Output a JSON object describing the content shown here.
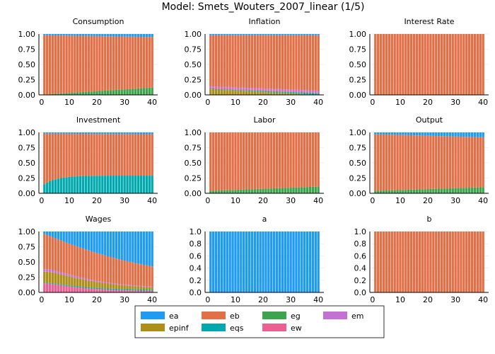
{
  "figure_title": "Model: Smets_Wouters_2007_linear  (1/5)",
  "legend": {
    "location": "bottom-center",
    "entries": [
      {
        "name": "ea",
        "color": "#1f9bf2"
      },
      {
        "name": "eb",
        "color": "#e26f46"
      },
      {
        "name": "eg",
        "color": "#3da44d"
      },
      {
        "name": "em",
        "color": "#c371d2"
      },
      {
        "name": "epinf",
        "color": "#ac8e18"
      },
      {
        "name": "eqs",
        "color": "#00a9ad"
      },
      {
        "name": "ew",
        "color": "#ed5e93"
      }
    ]
  },
  "chart_data": [
    {
      "type": "bar",
      "stacked": true,
      "title": "Consumption",
      "x_range": [
        1,
        40
      ],
      "x_ticks": [
        0,
        10,
        20,
        30,
        40
      ],
      "ylim": [
        0,
        1
      ],
      "y_ticks": [
        "0.00",
        "0.25",
        "0.50",
        "0.75",
        "1.00"
      ],
      "grid": true,
      "series": [
        {
          "name": "eg",
          "start": 0.005,
          "end": 0.12
        },
        {
          "name": "eb",
          "start": 0.975,
          "end": 0.83
        },
        {
          "name": "ea",
          "start": 0.02,
          "end": 0.05
        }
      ]
    },
    {
      "type": "bar",
      "stacked": true,
      "title": "Inflation",
      "x_range": [
        1,
        40
      ],
      "x_ticks": [
        0,
        10,
        20,
        30,
        40
      ],
      "ylim": [
        0,
        1
      ],
      "y_ticks": [
        "0.00",
        "0.25",
        "0.50",
        "0.75",
        "1.00"
      ],
      "grid": true,
      "series": [
        {
          "name": "epinf",
          "start": 0.09,
          "end": 0.0
        },
        {
          "name": "eqs",
          "start": 0.0,
          "end": 0.02
        },
        {
          "name": "eg",
          "start": 0.01,
          "end": 0.01
        },
        {
          "name": "ew",
          "start": 0.02,
          "end": 0.01
        },
        {
          "name": "em",
          "start": 0.02,
          "end": 0.03
        },
        {
          "name": "eb",
          "start": 0.84,
          "end": 0.91
        },
        {
          "name": "ea",
          "start": 0.02,
          "end": 0.02
        }
      ]
    },
    {
      "type": "bar",
      "stacked": true,
      "title": "Interest Rate",
      "x_range": [
        1,
        40
      ],
      "x_ticks": [
        0,
        10,
        20,
        30,
        40
      ],
      "ylim": [
        0,
        1
      ],
      "y_ticks": [
        "0.00",
        "0.25",
        "0.50",
        "0.75",
        "1.00"
      ],
      "grid": true,
      "series": [
        {
          "name": "eb",
          "start": 1.0,
          "end": 1.0
        }
      ]
    },
    {
      "type": "bar",
      "stacked": true,
      "title": "Investment",
      "x_range": [
        1,
        40
      ],
      "x_ticks": [
        0,
        10,
        20,
        30,
        40
      ],
      "ylim": [
        0,
        1
      ],
      "y_ticks": [
        "0.00",
        "0.25",
        "0.50",
        "0.75",
        "1.00"
      ],
      "grid": true,
      "series": [
        {
          "name": "eqs",
          "start": 0.15,
          "end": 0.29,
          "curve": "exp",
          "rate": 8
        },
        {
          "name": "eb",
          "start": 0.83,
          "end": 0.68,
          "curve": "exp",
          "rate": 8
        },
        {
          "name": "ea",
          "start": 0.02,
          "end": 0.03
        }
      ]
    },
    {
      "type": "bar",
      "stacked": true,
      "title": "Labor",
      "x_range": [
        1,
        40
      ],
      "x_ticks": [
        0,
        10,
        20,
        30,
        40
      ],
      "ylim": [
        0,
        1
      ],
      "y_ticks": [
        "0.00",
        "0.25",
        "0.50",
        "0.75",
        "1.00"
      ],
      "grid": true,
      "series": [
        {
          "name": "eg",
          "start": 0.04,
          "end": 0.11
        },
        {
          "name": "eb",
          "start": 0.96,
          "end": 0.89
        }
      ]
    },
    {
      "type": "bar",
      "stacked": true,
      "title": "Output",
      "x_range": [
        1,
        40
      ],
      "x_ticks": [
        0,
        10,
        20,
        30,
        40
      ],
      "ylim": [
        0,
        1
      ],
      "y_ticks": [
        "0.00",
        "0.25",
        "0.50",
        "0.75",
        "1.00"
      ],
      "grid": true,
      "series": [
        {
          "name": "eg",
          "start": 0.04,
          "end": 0.1
        },
        {
          "name": "eb",
          "start": 0.93,
          "end": 0.82
        },
        {
          "name": "ea",
          "start": 0.03,
          "end": 0.08
        }
      ]
    },
    {
      "type": "bar",
      "stacked": true,
      "title": "Wages",
      "x_range": [
        1,
        40
      ],
      "x_ticks": [
        0,
        10,
        20,
        30,
        40
      ],
      "ylim": [
        0,
        1
      ],
      "y_ticks": [
        "0.00",
        "0.25",
        "0.50",
        "0.75",
        "1.00"
      ],
      "grid": true,
      "series": [
        {
          "name": "ew",
          "start": 0.15,
          "end": 0.02,
          "curve": "exp",
          "rate": 3
        },
        {
          "name": "eqs",
          "start": 0.01,
          "end": 0.02
        },
        {
          "name": "epinf",
          "start": 0.18,
          "end": 0.0,
          "curve": "exp",
          "rate": 1.5
        },
        {
          "name": "em",
          "start": 0.04,
          "end": 0.01,
          "curve": "exp",
          "rate": 3
        },
        {
          "name": "eb",
          "start": 0.58,
          "end": 0.35,
          "curve": "mixed",
          "rate": 14
        },
        {
          "name": "ea",
          "start": 0.04,
          "end": 0.6
        }
      ]
    },
    {
      "type": "bar",
      "stacked": true,
      "title": "a",
      "x_range": [
        1,
        40
      ],
      "x_ticks": [
        0,
        10,
        20,
        30,
        40
      ],
      "ylim": [
        0,
        1
      ],
      "y_ticks": [
        "0.0",
        "0.2",
        "0.4",
        "0.6",
        "0.8",
        "1.0"
      ],
      "grid": true,
      "series": [
        {
          "name": "ea",
          "start": 1.0,
          "end": 1.0
        }
      ]
    },
    {
      "type": "bar",
      "stacked": true,
      "title": "b",
      "x_range": [
        1,
        40
      ],
      "x_ticks": [
        0,
        10,
        20,
        30,
        40
      ],
      "ylim": [
        0,
        1
      ],
      "y_ticks": [
        "0.0",
        "0.2",
        "0.4",
        "0.6",
        "0.8",
        "1.0"
      ],
      "grid": true,
      "series": [
        {
          "name": "eb",
          "start": 1.0,
          "end": 1.0
        }
      ]
    }
  ]
}
